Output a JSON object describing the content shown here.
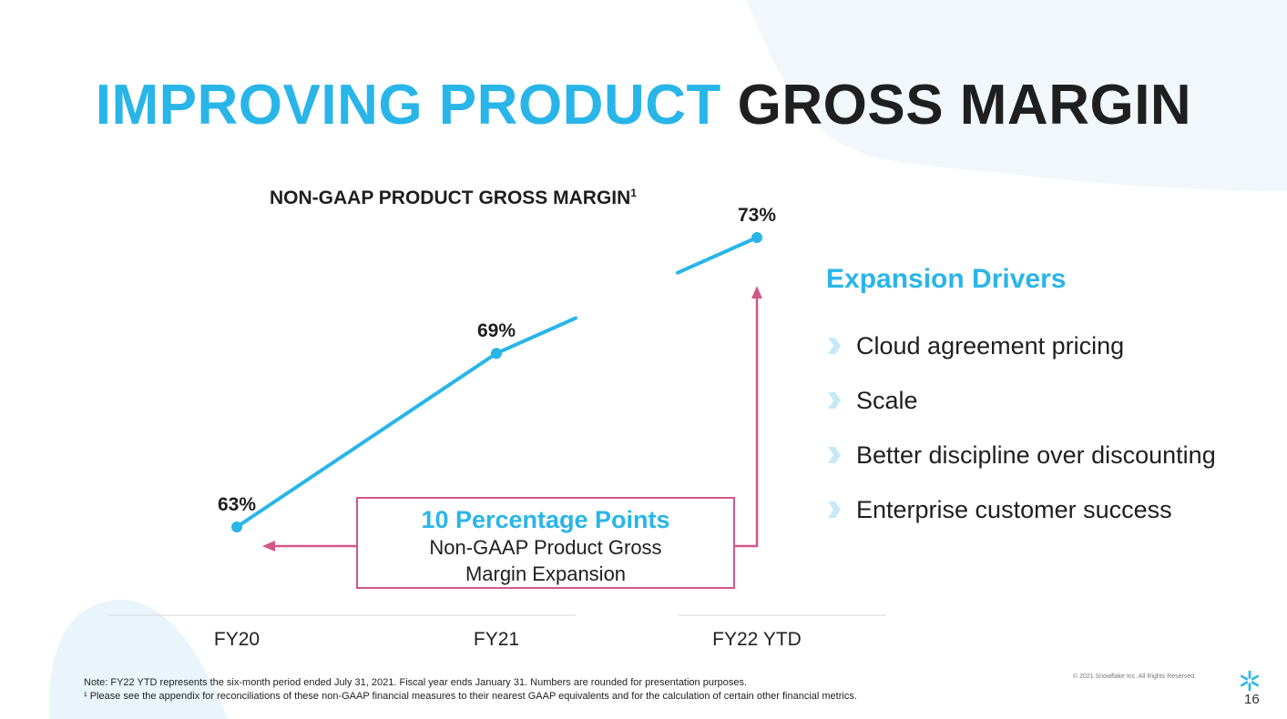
{
  "slide": {
    "title_accent": "IMPROVING PRODUCT",
    "title_dark": "GROSS MARGIN",
    "page_number": "16",
    "copyright": "© 2021 Snowflake Inc. All Rights Reserved.",
    "footnote_1": "Note: FY22 YTD represents the six-month period ended July 31, 2021. Fiscal year ends January 31. Numbers are rounded for presentation purposes.",
    "footnote_2": "¹ Please see the appendix for reconciliations of these non-GAAP financial measures to their nearest GAAP equivalents and for the calculation of certain other financial metrics.",
    "logo_icon": "snowflake-icon"
  },
  "chart_data": {
    "type": "line",
    "title": "NON-GAAP PRODUCT GROSS MARGIN",
    "title_superscript": "1",
    "categories": [
      "FY20",
      "FY21",
      "FY22 YTD"
    ],
    "values": [
      63,
      69,
      73
    ],
    "data_labels": [
      "63%",
      "69%",
      "73%"
    ],
    "unit": "%",
    "ylim": [
      63,
      73
    ],
    "grid": false,
    "line_color": "#29b5e8",
    "axis_color": "#d9d9d9"
  },
  "callout": {
    "headline": "10 Percentage Points",
    "text": "Non-GAAP Product Gross Margin Expansion",
    "border_color": "#d2578a"
  },
  "drivers": {
    "title": "Expansion Drivers",
    "icon": "chevron-right-icon",
    "items": [
      "Cloud agreement pricing",
      "Scale",
      "Better discipline over discounting",
      "Enterprise customer success"
    ]
  },
  "colors": {
    "accent": "#29b5e8",
    "dark": "#1f1f1f",
    "callout": "#d2578a",
    "background_shape": "#eef6fa"
  }
}
